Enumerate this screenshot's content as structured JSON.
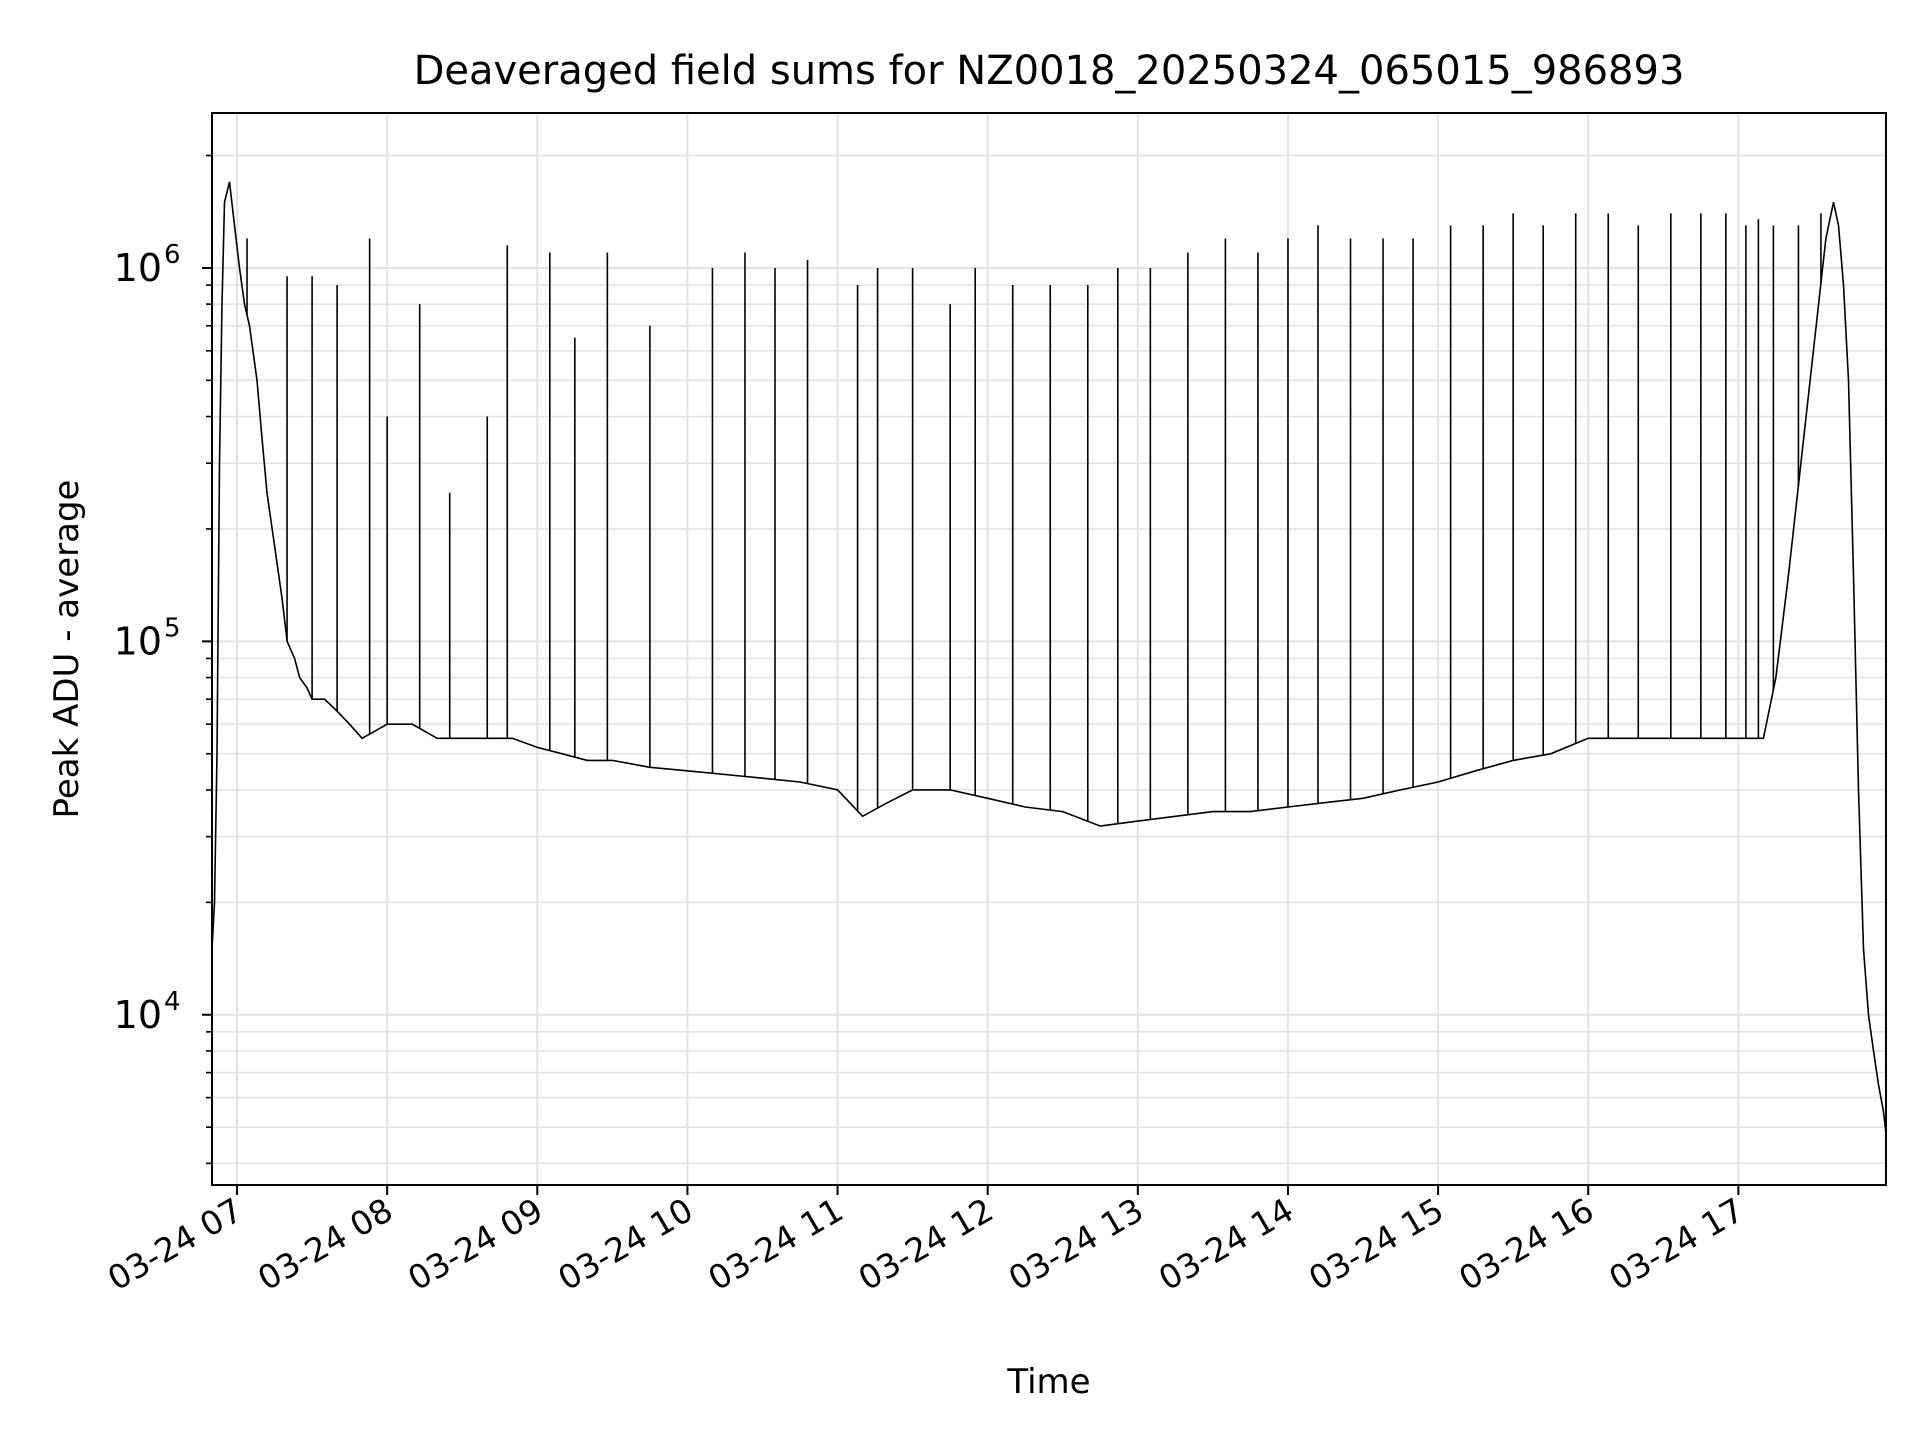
{
  "chart_data": {
    "type": "line",
    "title": "Deaveraged field sums for NZ0018_20250324_065015_986893",
    "xlabel": "Time",
    "ylabel": "Peak ADU - average",
    "yscale": "log",
    "ylim": [
      3500,
      2600000
    ],
    "xlim": [
      "2025-03-24 06:50",
      "2025-03-24 17:59"
    ],
    "grid": true,
    "line_color": "#000000",
    "x_ticks": [
      {
        "time": "2025-03-24 07:00",
        "label": "03-24 07"
      },
      {
        "time": "2025-03-24 08:00",
        "label": "03-24 08"
      },
      {
        "time": "2025-03-24 09:00",
        "label": "03-24 09"
      },
      {
        "time": "2025-03-24 10:00",
        "label": "03-24 10"
      },
      {
        "time": "2025-03-24 11:00",
        "label": "03-24 11"
      },
      {
        "time": "2025-03-24 12:00",
        "label": "03-24 12"
      },
      {
        "time": "2025-03-24 13:00",
        "label": "03-24 13"
      },
      {
        "time": "2025-03-24 14:00",
        "label": "03-24 14"
      },
      {
        "time": "2025-03-24 15:00",
        "label": "03-24 15"
      },
      {
        "time": "2025-03-24 16:00",
        "label": "03-24 16"
      },
      {
        "time": "2025-03-24 17:00",
        "label": "03-24 17"
      }
    ],
    "y_ticks": [
      {
        "value": 10000,
        "base": "10",
        "exp": "4"
      },
      {
        "value": 100000,
        "base": "10",
        "exp": "5"
      },
      {
        "value": 1000000,
        "base": "10",
        "exp": "6"
      }
    ],
    "series": [
      {
        "x": [
          "2025-03-24 06:50",
          "2025-03-24 06:51",
          "2025-03-24 06:52",
          "2025-03-24 06:53",
          "2025-03-24 06:54",
          "2025-03-24 06:55",
          "2025-03-24 06:57",
          "2025-03-24 06:59",
          "2025-03-24 07:01",
          "2025-03-24 07:03",
          "2025-03-24 07:05",
          "2025-03-24 07:08",
          "2025-03-24 07:10",
          "2025-03-24 07:12",
          "2025-03-24 07:15",
          "2025-03-24 07:18",
          "2025-03-24 07:20",
          "2025-03-24 07:23",
          "2025-03-24 07:25",
          "2025-03-24 07:28",
          "2025-03-24 07:30",
          "2025-03-24 07:35",
          "2025-03-24 07:40",
          "2025-03-24 07:45",
          "2025-03-24 07:50",
          "2025-03-24 08:00",
          "2025-03-24 08:10",
          "2025-03-24 08:20",
          "2025-03-24 08:30",
          "2025-03-24 08:40",
          "2025-03-24 08:50",
          "2025-03-24 09:00",
          "2025-03-24 09:10",
          "2025-03-24 09:20",
          "2025-03-24 09:30",
          "2025-03-24 09:45",
          "2025-03-24 10:00",
          "2025-03-24 10:15",
          "2025-03-24 10:30",
          "2025-03-24 10:45",
          "2025-03-24 11:00",
          "2025-03-24 11:10",
          "2025-03-24 11:20",
          "2025-03-24 11:30",
          "2025-03-24 11:45",
          "2025-03-24 12:00",
          "2025-03-24 12:15",
          "2025-03-24 12:30",
          "2025-03-24 12:45",
          "2025-03-24 13:00",
          "2025-03-24 13:15",
          "2025-03-24 13:30",
          "2025-03-24 13:45",
          "2025-03-24 14:00",
          "2025-03-24 14:15",
          "2025-03-24 14:30",
          "2025-03-24 14:45",
          "2025-03-24 15:00",
          "2025-03-24 15:15",
          "2025-03-24 15:30",
          "2025-03-24 15:45",
          "2025-03-24 16:00",
          "2025-03-24 16:15",
          "2025-03-24 16:30",
          "2025-03-24 16:45",
          "2025-03-24 17:00",
          "2025-03-24 17:10",
          "2025-03-24 17:15",
          "2025-03-24 17:20",
          "2025-03-24 17:25",
          "2025-03-24 17:30",
          "2025-03-24 17:35",
          "2025-03-24 17:38",
          "2025-03-24 17:40",
          "2025-03-24 17:42",
          "2025-03-24 17:44",
          "2025-03-24 17:46",
          "2025-03-24 17:48",
          "2025-03-24 17:50",
          "2025-03-24 17:52",
          "2025-03-24 17:54",
          "2025-03-24 17:56",
          "2025-03-24 17:58",
          "2025-03-24 17:59"
        ],
        "y": [
          15000,
          20000,
          50000,
          300000,
          800000,
          1500000,
          1700000,
          1300000,
          1000000,
          800000,
          700000,
          500000,
          350000,
          250000,
          180000,
          130000,
          100000,
          90000,
          80000,
          75000,
          70000,
          70000,
          65000,
          60000,
          55000,
          60000,
          60000,
          55000,
          55000,
          55000,
          55000,
          52000,
          50000,
          48000,
          48000,
          46000,
          45000,
          44000,
          43000,
          42000,
          40000,
          34000,
          37000,
          40000,
          40000,
          38000,
          36000,
          35000,
          32000,
          33000,
          34000,
          35000,
          35000,
          36000,
          37000,
          38000,
          40000,
          42000,
          45000,
          48000,
          50000,
          55000,
          55000,
          55000,
          55000,
          55000,
          55000,
          80000,
          150000,
          300000,
          600000,
          1200000,
          1500000,
          1300000,
          900000,
          500000,
          150000,
          40000,
          15000,
          10000,
          8000,
          6500,
          5500,
          4800
        ]
      }
    ],
    "spikes": [
      [
        "2025-03-24 07:04",
        1200000
      ],
      [
        "2025-03-24 07:20",
        950000
      ],
      [
        "2025-03-24 07:30",
        950000
      ],
      [
        "2025-03-24 07:40",
        900000
      ],
      [
        "2025-03-24 07:53",
        1200000
      ],
      [
        "2025-03-24 08:00",
        400000
      ],
      [
        "2025-03-24 08:13",
        800000
      ],
      [
        "2025-03-24 08:25",
        250000
      ],
      [
        "2025-03-24 08:40",
        400000
      ],
      [
        "2025-03-24 08:48",
        1150000
      ],
      [
        "2025-03-24 09:05",
        1100000
      ],
      [
        "2025-03-24 09:15",
        650000
      ],
      [
        "2025-03-24 09:28",
        1100000
      ],
      [
        "2025-03-24 09:45",
        700000
      ],
      [
        "2025-03-24 10:10",
        1000000
      ],
      [
        "2025-03-24 10:23",
        1100000
      ],
      [
        "2025-03-24 10:35",
        1000000
      ],
      [
        "2025-03-24 10:48",
        1050000
      ],
      [
        "2025-03-24 11:08",
        900000
      ],
      [
        "2025-03-24 11:16",
        1000000
      ],
      [
        "2025-03-24 11:30",
        1000000
      ],
      [
        "2025-03-24 11:45",
        800000
      ],
      [
        "2025-03-24 11:55",
        1000000
      ],
      [
        "2025-03-24 12:10",
        900000
      ],
      [
        "2025-03-24 12:25",
        900000
      ],
      [
        "2025-03-24 12:40",
        900000
      ],
      [
        "2025-03-24 12:52",
        1000000
      ],
      [
        "2025-03-24 13:05",
        1000000
      ],
      [
        "2025-03-24 13:20",
        1100000
      ],
      [
        "2025-03-24 13:35",
        1200000
      ],
      [
        "2025-03-24 13:48",
        1100000
      ],
      [
        "2025-03-24 14:00",
        1200000
      ],
      [
        "2025-03-24 14:12",
        1300000
      ],
      [
        "2025-03-24 14:25",
        1200000
      ],
      [
        "2025-03-24 14:38",
        1200000
      ],
      [
        "2025-03-24 14:50",
        1200000
      ],
      [
        "2025-03-24 15:05",
        1300000
      ],
      [
        "2025-03-24 15:18",
        1300000
      ],
      [
        "2025-03-24 15:30",
        1400000
      ],
      [
        "2025-03-24 15:42",
        1300000
      ],
      [
        "2025-03-24 15:55",
        1400000
      ],
      [
        "2025-03-24 16:08",
        1400000
      ],
      [
        "2025-03-24 16:20",
        1300000
      ],
      [
        "2025-03-24 16:33",
        1400000
      ],
      [
        "2025-03-24 16:45",
        1400000
      ],
      [
        "2025-03-24 16:55",
        1400000
      ],
      [
        "2025-03-24 17:03",
        1300000
      ],
      [
        "2025-03-24 17:08",
        1350000
      ],
      [
        "2025-03-24 17:14",
        1300000
      ],
      [
        "2025-03-24 17:24",
        1300000
      ],
      [
        "2025-03-24 17:33",
        1400000
      ]
    ]
  }
}
